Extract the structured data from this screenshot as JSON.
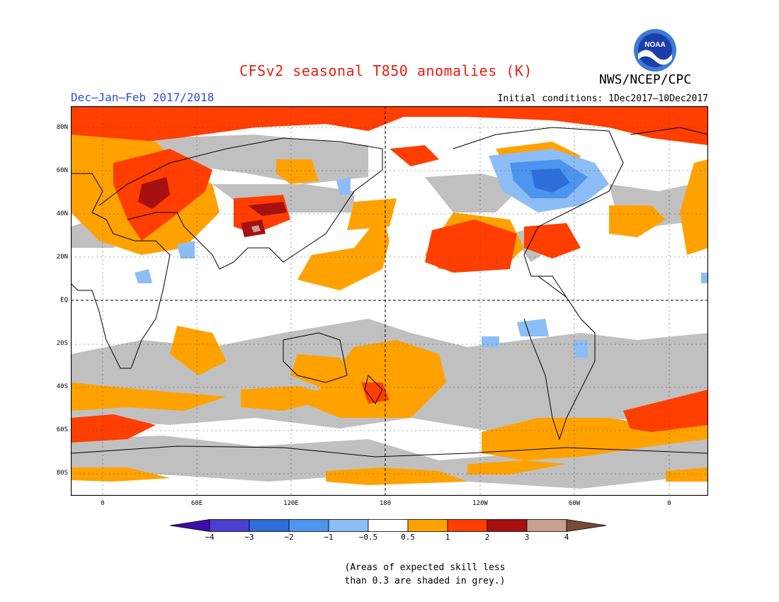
{
  "title": "CFSv2 seasonal T850 anomalies (K)",
  "agency": "NWS/NCEP/CPC",
  "logo_text": "NOAA",
  "season": "Dec–Jan–Feb 2017/2018",
  "initial_conditions": "Initial conditions: 1Dec2017–10Dec2017",
  "latitude_labels": [
    "80N",
    "60N",
    "40N",
    "20N",
    "EQ",
    "20S",
    "40S",
    "60S",
    "80S"
  ],
  "longitude_labels": [
    "0",
    "60E",
    "120E",
    "180",
    "120W",
    "60W",
    "0"
  ],
  "colorbar_labels": [
    "−4",
    "−3",
    "−2",
    "−1",
    "−0.5",
    "0.5",
    "1",
    "2",
    "3",
    "4"
  ],
  "colorbar_colors": [
    "#3d0ca8",
    "#4a3fd0",
    "#2e6ed9",
    "#4d94ee",
    "#8cbdf5",
    "#ffffff",
    "#ffa200",
    "#ff3e00",
    "#a61010",
    "#c9a08f",
    "#7a4a38"
  ],
  "skill_note_line1": "(Areas of expected skill less",
  "skill_note_line2": "than 0.3 are shaded in grey.)",
  "colors": {
    "title": "#e81e10",
    "season": "#2b4ed6",
    "grey_shading": "#c0c0c0",
    "anomaly_0_5_to_1": "#ffa200",
    "anomaly_1_to_2": "#ff3e00",
    "anomaly_2_to_3": "#a61010",
    "anomaly_3_to_4": "#c9a08f",
    "anomaly_neg_0_5_to_1": "#8cbdf5",
    "anomaly_neg_1_to_2": "#4d94ee",
    "anomaly_neg_2_to_3": "#2e6ed9"
  }
}
